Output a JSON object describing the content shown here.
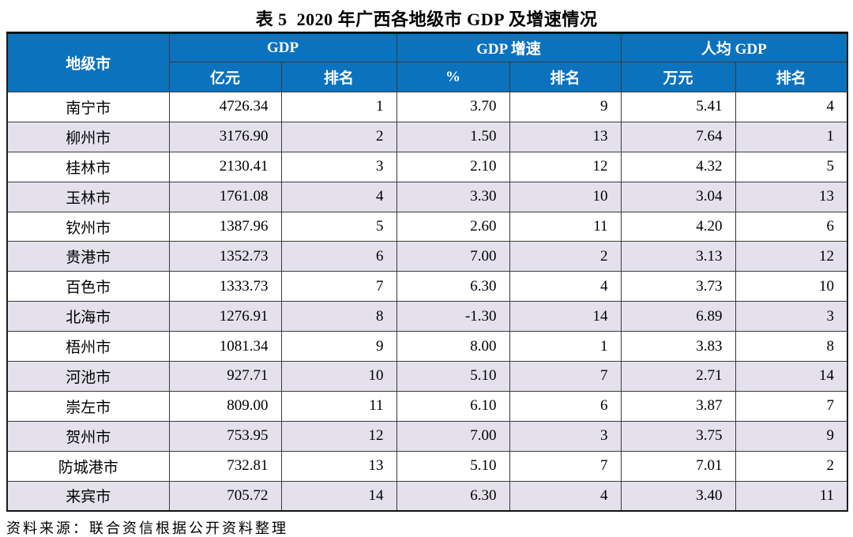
{
  "title": "表 5  2020 年广西各地级市 GDP 及增速情况",
  "table": {
    "header": {
      "city": "地级市",
      "groups": [
        {
          "label": "GDP",
          "sub": [
            "亿元",
            "排名"
          ]
        },
        {
          "label": "GDP 增速",
          "sub": [
            "%",
            "排名"
          ]
        },
        {
          "label": "人均 GDP",
          "sub": [
            "万元",
            "排名"
          ]
        }
      ]
    },
    "rows": [
      {
        "city": "南宁市",
        "gdp": "4726.34",
        "gdp_rank": "1",
        "growth": "3.70",
        "growth_rank": "9",
        "per_capita": "5.41",
        "per_capita_rank": "4"
      },
      {
        "city": "柳州市",
        "gdp": "3176.90",
        "gdp_rank": "2",
        "growth": "1.50",
        "growth_rank": "13",
        "per_capita": "7.64",
        "per_capita_rank": "1"
      },
      {
        "city": "桂林市",
        "gdp": "2130.41",
        "gdp_rank": "3",
        "growth": "2.10",
        "growth_rank": "12",
        "per_capita": "4.32",
        "per_capita_rank": "5"
      },
      {
        "city": "玉林市",
        "gdp": "1761.08",
        "gdp_rank": "4",
        "growth": "3.30",
        "growth_rank": "10",
        "per_capita": "3.04",
        "per_capita_rank": "13"
      },
      {
        "city": "钦州市",
        "gdp": "1387.96",
        "gdp_rank": "5",
        "growth": "2.60",
        "growth_rank": "11",
        "per_capita": "4.20",
        "per_capita_rank": "6"
      },
      {
        "city": "贵港市",
        "gdp": "1352.73",
        "gdp_rank": "6",
        "growth": "7.00",
        "growth_rank": "2",
        "per_capita": "3.13",
        "per_capita_rank": "12"
      },
      {
        "city": "百色市",
        "gdp": "1333.73",
        "gdp_rank": "7",
        "growth": "6.30",
        "growth_rank": "4",
        "per_capita": "3.73",
        "per_capita_rank": "10"
      },
      {
        "city": "北海市",
        "gdp": "1276.91",
        "gdp_rank": "8",
        "growth": "-1.30",
        "growth_rank": "14",
        "per_capita": "6.89",
        "per_capita_rank": "3"
      },
      {
        "city": "梧州市",
        "gdp": "1081.34",
        "gdp_rank": "9",
        "growth": "8.00",
        "growth_rank": "1",
        "per_capita": "3.83",
        "per_capita_rank": "8"
      },
      {
        "city": "河池市",
        "gdp": "927.71",
        "gdp_rank": "10",
        "growth": "5.10",
        "growth_rank": "7",
        "per_capita": "2.71",
        "per_capita_rank": "14"
      },
      {
        "city": "崇左市",
        "gdp": "809.00",
        "gdp_rank": "11",
        "growth": "6.10",
        "growth_rank": "6",
        "per_capita": "3.87",
        "per_capita_rank": "7"
      },
      {
        "city": "贺州市",
        "gdp": "753.95",
        "gdp_rank": "12",
        "growth": "7.00",
        "growth_rank": "3",
        "per_capita": "3.75",
        "per_capita_rank": "9"
      },
      {
        "city": "防城港市",
        "gdp": "732.81",
        "gdp_rank": "13",
        "growth": "5.10",
        "growth_rank": "7",
        "per_capita": "7.01",
        "per_capita_rank": "2"
      },
      {
        "city": "来宾市",
        "gdp": "705.72",
        "gdp_rank": "14",
        "growth": "6.30",
        "growth_rank": "4",
        "per_capita": "3.40",
        "per_capita_rank": "11"
      }
    ]
  },
  "source": "资料来源：联合资信根据公开资料整理",
  "colors": {
    "header_bg": "#0b72be",
    "stripe_bg": "#e4e1ec",
    "border": "#3a3a3a"
  }
}
